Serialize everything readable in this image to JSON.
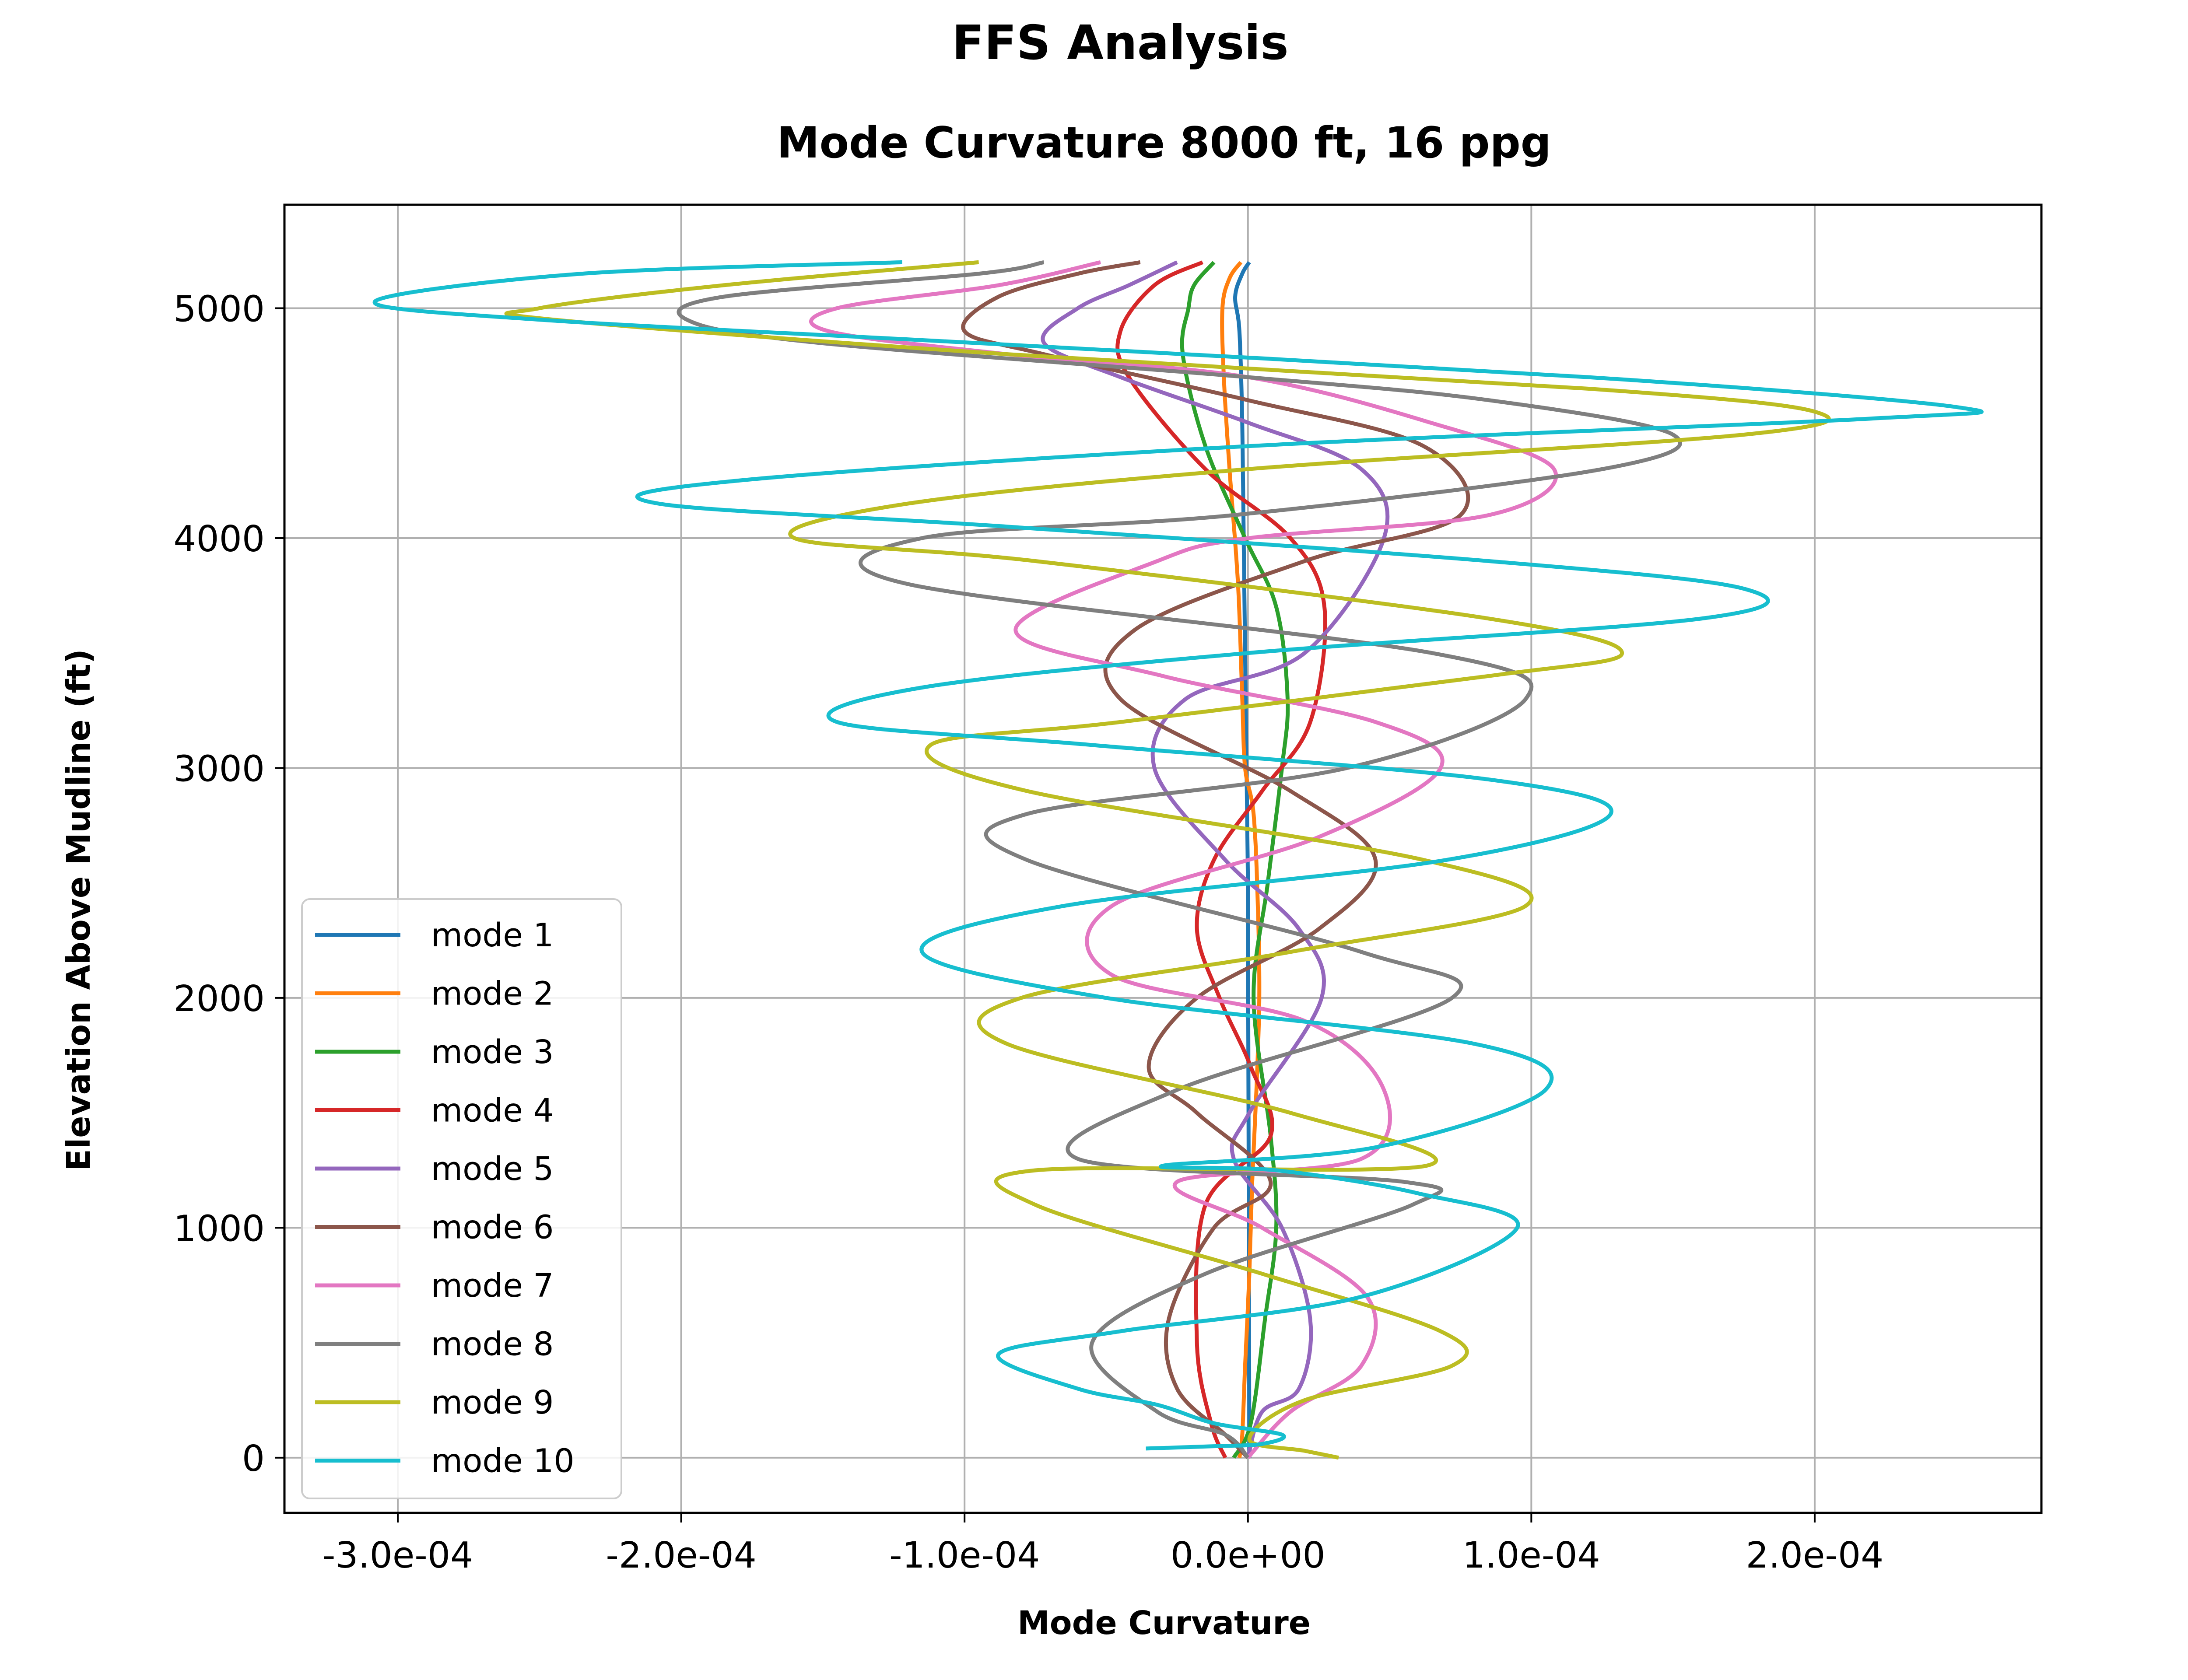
{
  "figure_title": "FFS Analysis",
  "chart_data": {
    "type": "line",
    "title": "Mode Curvature 8000 ft, 16 ppg",
    "xlabel": "Mode Curvature",
    "ylabel": "Elevation Above Mudline (ft)",
    "xlim": [
      -0.00034,
      0.00028
    ],
    "ylim": [
      -240,
      5450
    ],
    "xticks": [
      -0.0003,
      -0.0002,
      -0.0001,
      0.0,
      0.0001,
      0.0002
    ],
    "xtick_labels": [
      "-3.0e-04",
      "-2.0e-04",
      "-1.0e-04",
      "0.0e+00",
      "1.0e-04",
      "2.0e-04"
    ],
    "yticks": [
      0,
      1000,
      2000,
      3000,
      4000,
      5000
    ],
    "ytick_labels": [
      "0",
      "1000",
      "2000",
      "3000",
      "4000",
      "5000"
    ],
    "grid": true,
    "legend_position": "lower-left",
    "series": [
      {
        "name": "mode 1",
        "color": "#1f77b4",
        "points": [
          [
            5e-07,
            0
          ],
          [
            4e-07,
            500
          ],
          [
            3e-07,
            1000
          ],
          [
            2e-07,
            1500
          ],
          [
            1e-07,
            2000
          ],
          [
            0.0,
            2500
          ],
          [
            -5e-07,
            3000
          ],
          [
            -1e-06,
            3500
          ],
          [
            -1.5e-06,
            4000
          ],
          [
            -2e-06,
            4500
          ],
          [
            -3e-06,
            4900
          ],
          [
            -4.5e-06,
            5050
          ],
          [
            -2e-06,
            5150
          ],
          [
            5e-07,
            5200
          ]
        ]
      },
      {
        "name": "mode 2",
        "color": "#ff7f0e",
        "points": [
          [
            -3e-06,
            0
          ],
          [
            -2e-06,
            100
          ],
          [
            -1e-06,
            400
          ],
          [
            5e-07,
            800
          ],
          [
            1.5e-06,
            1200
          ],
          [
            3e-06,
            1600
          ],
          [
            4e-06,
            2000
          ],
          [
            3.5e-06,
            2400
          ],
          [
            2e-06,
            2800
          ],
          [
            -1e-06,
            3000
          ],
          [
            -2e-06,
            3300
          ],
          [
            -3.5e-06,
            3800
          ],
          [
            -6.5e-06,
            4300
          ],
          [
            -8.5e-06,
            4700
          ],
          [
            -9e-06,
            5000
          ],
          [
            -6.5e-06,
            5130
          ],
          [
            -2.5e-06,
            5200
          ]
        ]
      },
      {
        "name": "mode 3",
        "color": "#2ca02c",
        "points": [
          [
            -5e-06,
            0
          ],
          [
            1e-06,
            150
          ],
          [
            6e-06,
            600
          ],
          [
            1e-05,
            1000
          ],
          [
            8e-06,
            1400
          ],
          [
            2e-06,
            2000
          ],
          [
            7e-06,
            2500
          ],
          [
            1.2e-05,
            3000
          ],
          [
            1.4e-05,
            3300
          ],
          [
            1e-05,
            3700
          ],
          [
            -1e-06,
            4000
          ],
          [
            -1.5e-05,
            4400
          ],
          [
            -2.3e-05,
            4800
          ],
          [
            -2.1e-05,
            5000
          ],
          [
            -1.9e-05,
            5100
          ],
          [
            -1.2e-05,
            5200
          ]
        ]
      },
      {
        "name": "mode 4",
        "color": "#d62728",
        "points": [
          [
            -8e-06,
            0
          ],
          [
            -1.3e-05,
            150
          ],
          [
            -1.8e-05,
            500
          ],
          [
            -1.5e-05,
            1100
          ],
          [
            8e-06,
            1400
          ],
          [
            1e-06,
            1700
          ],
          [
            -1e-05,
            2000
          ],
          [
            -1.8e-05,
            2300
          ],
          [
            -1.2e-05,
            2600
          ],
          [
            5e-06,
            2900
          ],
          [
            2.2e-05,
            3200
          ],
          [
            2.7e-05,
            3700
          ],
          [
            1.5e-05,
            4000
          ],
          [
            -1.5e-05,
            4300
          ],
          [
            -4.2e-05,
            4700
          ],
          [
            -4.5e-05,
            4900
          ],
          [
            -3.3e-05,
            5100
          ],
          [
            -1.6e-05,
            5200
          ]
        ]
      },
      {
        "name": "mode 5",
        "color": "#9467bd",
        "points": [
          [
            0.0,
            0
          ],
          [
            5e-06,
            200
          ],
          [
            1.8e-05,
            300
          ],
          [
            2.2e-05,
            600
          ],
          [
            1.2e-05,
            1000
          ],
          [
            -5e-06,
            1300
          ],
          [
            5e-07,
            1500
          ],
          [
            2.6e-05,
            2000
          ],
          [
            1.8e-05,
            2300
          ],
          [
            -8e-06,
            2600
          ],
          [
            -3.3e-05,
            3000
          ],
          [
            -2.2e-05,
            3300
          ],
          [
            2e-05,
            3500
          ],
          [
            4.8e-05,
            4000
          ],
          [
            4e-05,
            4300
          ],
          [
            5e-07,
            4500
          ],
          [
            -4.5e-05,
            4700
          ],
          [
            -7.2e-05,
            4850
          ],
          [
            -6e-05,
            5000
          ],
          [
            -4.2e-05,
            5100
          ],
          [
            -2.5e-05,
            5200
          ]
        ]
      },
      {
        "name": "mode 6",
        "color": "#8c564b",
        "points": [
          [
            0.0,
            0
          ],
          [
            -8e-06,
            100
          ],
          [
            -2.5e-05,
            300
          ],
          [
            -2.8e-05,
            600
          ],
          [
            -1.2e-05,
            1000
          ],
          [
            8e-06,
            1200
          ],
          [
            -1.8e-05,
            1500
          ],
          [
            -3.5e-05,
            1700
          ],
          [
            -1.8e-05,
            2000
          ],
          [
            2.5e-05,
            2300
          ],
          [
            4.5e-05,
            2600
          ],
          [
            1.5e-05,
            2900
          ],
          [
            -4.5e-05,
            3300
          ],
          [
            -4e-05,
            3600
          ],
          [
            2e-05,
            3900
          ],
          [
            7.5e-05,
            4100
          ],
          [
            6.2e-05,
            4400
          ],
          [
            0.0,
            4600
          ],
          [
            -7.2e-05,
            4800
          ],
          [
            -0.0001,
            4900
          ],
          [
            -8.8e-05,
            5050
          ],
          [
            -6e-05,
            5150
          ],
          [
            -3.8e-05,
            5200
          ]
        ]
      },
      {
        "name": "mode 7",
        "color": "#e377c2",
        "points": [
          [
            0.0,
            0
          ],
          [
            1.5e-05,
            200
          ],
          [
            4e-05,
            400
          ],
          [
            4.2e-05,
            700
          ],
          [
            5e-06,
            1000
          ],
          [
            -2.5e-05,
            1200
          ],
          [
            4e-05,
            1300
          ],
          [
            4.8e-05,
            1600
          ],
          [
            2e-05,
            1900
          ],
          [
            -4.8e-05,
            2100
          ],
          [
            -4.8e-05,
            2400
          ],
          [
            2.5e-05,
            2700
          ],
          [
            6.8e-05,
            3000
          ],
          [
            4.5e-05,
            3200
          ],
          [
            -3e-05,
            3400
          ],
          [
            -8.2e-05,
            3600
          ],
          [
            -3.2e-05,
            3900
          ],
          [
            5e-07,
            4000
          ],
          [
            8.5e-05,
            4100
          ],
          [
            0.000108,
            4300
          ],
          [
            6.5e-05,
            4500
          ],
          [
            0.0,
            4700
          ],
          [
            -8.5e-05,
            4800
          ],
          [
            -0.000148,
            4900
          ],
          [
            -0.000145,
            5000
          ],
          [
            -8.8e-05,
            5100
          ],
          [
            -5.2e-05,
            5200
          ]
        ]
      },
      {
        "name": "mode 8",
        "color": "#7f7f7f",
        "points": [
          [
            0.0,
            0
          ],
          [
            -8e-06,
            100
          ],
          [
            -3.2e-05,
            200
          ],
          [
            -5.5e-05,
            500
          ],
          [
            -1.5e-05,
            800
          ],
          [
            5.8e-05,
            1100
          ],
          [
            5.5e-05,
            1200
          ],
          [
            -6e-05,
            1300
          ],
          [
            -2.5e-05,
            1600
          ],
          [
            7.2e-05,
            2000
          ],
          [
            4e-05,
            2200
          ],
          [
            -7.8e-05,
            2600
          ],
          [
            -7.8e-05,
            2800
          ],
          [
            3.5e-05,
            3000
          ],
          [
            9.8e-05,
            3300
          ],
          [
            6.5e-05,
            3500
          ],
          [
            -0.00012,
            3800
          ],
          [
            -0.000115,
            4000
          ],
          [
            -5e-06,
            4100
          ],
          [
            0.000125,
            4300
          ],
          [
            0.00015,
            4450
          ],
          [
            8.5e-05,
            4600
          ],
          [
            0.0,
            4700
          ],
          [
            -0.000152,
            4850
          ],
          [
            -0.000198,
            4950
          ],
          [
            -0.000185,
            5050
          ],
          [
            -9.5e-05,
            5150
          ],
          [
            -7.2e-05,
            5200
          ]
        ]
      },
      {
        "name": "mode 9",
        "color": "#bcbd22",
        "points": [
          [
            3.2e-05,
            0
          ],
          [
            2e-05,
            30
          ],
          [
            5e-07,
            80
          ],
          [
            2e-05,
            250
          ],
          [
            7.2e-05,
            400
          ],
          [
            6.8e-05,
            550
          ],
          [
            5e-06,
            800
          ],
          [
            -7.5e-05,
            1100
          ],
          [
            -7.5e-05,
            1250
          ],
          [
            6.3e-05,
            1270
          ],
          [
            1.5e-05,
            1500
          ],
          [
            -8.5e-05,
            1800
          ],
          [
            -8e-05,
            2000
          ],
          [
            1.5e-05,
            2200
          ],
          [
            9.8e-05,
            2400
          ],
          [
            6.2e-05,
            2600
          ],
          [
            -7.8e-05,
            2900
          ],
          [
            -0.000112,
            3100
          ],
          [
            -4.5e-05,
            3200
          ],
          [
            8.5e-05,
            3400
          ],
          [
            0.000132,
            3500
          ],
          [
            8.5e-05,
            3650
          ],
          [
            -7.5e-05,
            3900
          ],
          [
            -0.00016,
            4000
          ],
          [
            -0.00012,
            4150
          ],
          [
            0.0,
            4300
          ],
          [
            0.000175,
            4450
          ],
          [
            0.0002,
            4550
          ],
          [
            0.00012,
            4650
          ],
          [
            -8.5e-05,
            4800
          ],
          [
            -0.000245,
            4950
          ],
          [
            -0.00025,
            5000
          ],
          [
            -0.000185,
            5100
          ],
          [
            -9.5e-05,
            5200
          ]
        ]
      },
      {
        "name": "mode 10",
        "color": "#17becf",
        "points": [
          [
            -3.6e-05,
            40
          ],
          [
            -1.2e-05,
            50
          ],
          [
            5e-06,
            60
          ],
          [
            1.2e-05,
            100
          ],
          [
            -1.2e-05,
            150
          ],
          [
            -3.2e-05,
            230
          ],
          [
            -6e-05,
            300
          ],
          [
            -8.8e-05,
            450
          ],
          [
            -4.5e-05,
            550
          ],
          [
            4e-05,
            700
          ],
          [
            9.5e-05,
            1000
          ],
          [
            6e-05,
            1150
          ],
          [
            1e-05,
            1250
          ],
          [
            -3e-05,
            1270
          ],
          [
            4.5e-05,
            1350
          ],
          [
            0.000105,
            1600
          ],
          [
            8e-05,
            1800
          ],
          [
            -5e-05,
            2000
          ],
          [
            -0.000115,
            2200
          ],
          [
            -6.5e-05,
            2400
          ],
          [
            7e-05,
            2600
          ],
          [
            0.000128,
            2800
          ],
          [
            8.5e-05,
            2950
          ],
          [
            -5.5e-05,
            3100
          ],
          [
            -0.000145,
            3200
          ],
          [
            -0.000115,
            3350
          ],
          [
            0.0,
            3500
          ],
          [
            0.00016,
            3650
          ],
          [
            0.000175,
            3780
          ],
          [
            8.5e-05,
            3900
          ],
          [
            -8.5e-05,
            4050
          ],
          [
            -0.000208,
            4150
          ],
          [
            -0.00018,
            4250
          ],
          [
            0.0,
            4400
          ],
          [
            0.00022,
            4520
          ],
          [
            0.00025,
            4570
          ],
          [
            0.00012,
            4700
          ],
          [
            -9.8e-05,
            4850
          ],
          [
            -0.00025,
            4950
          ],
          [
            -0.000308,
            5030
          ],
          [
            -0.000235,
            5150
          ],
          [
            -0.000122,
            5200
          ]
        ]
      }
    ]
  }
}
